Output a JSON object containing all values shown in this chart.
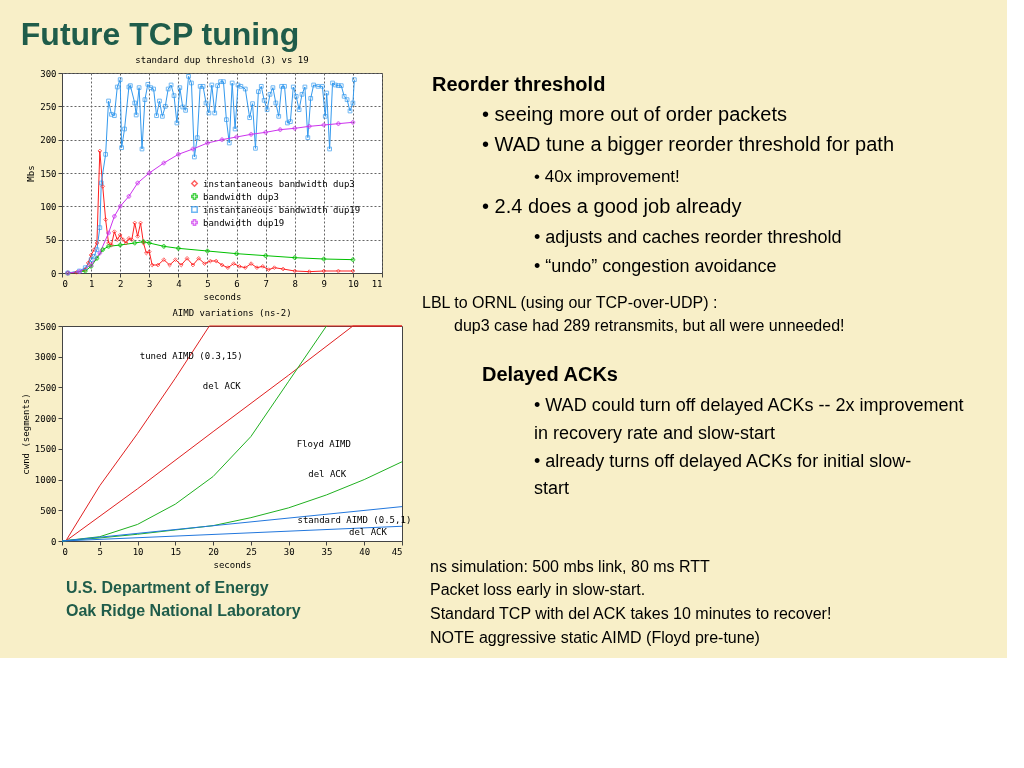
{
  "chart_data": [
    {
      "type": "line",
      "title": "standard dup threshold (3) vs 19",
      "xlabel": "seconds",
      "ylabel": "Mbs",
      "xlim": [
        0,
        11
      ],
      "xticks": [
        0,
        1,
        2,
        3,
        4,
        5,
        6,
        7,
        8,
        9,
        10,
        11
      ],
      "ylim": [
        0,
        300
      ],
      "yticks": [
        0,
        50,
        100,
        150,
        200,
        250,
        300
      ],
      "grid": true,
      "legend": "right",
      "series": [
        {
          "name": "instantaneous bandwidth dup3",
          "color": "#ff2020",
          "marker": "diamond",
          "x": [
            0.2,
            0.5,
            0.8,
            0.9,
            1.0,
            1.1,
            1.2,
            1.3,
            1.4,
            1.5,
            1.6,
            1.7,
            1.8,
            1.9,
            2.0,
            2.1,
            2.2,
            2.3,
            2.4,
            2.5,
            2.6,
            2.7,
            2.8,
            2.9,
            3.0,
            3.1,
            3.3,
            3.5,
            3.7,
            3.9,
            4.1,
            4.3,
            4.5,
            4.7,
            4.9,
            5.1,
            5.3,
            5.5,
            5.7,
            5.9,
            6.1,
            6.3,
            6.5,
            6.7,
            6.9,
            7.1,
            7.3,
            7.6,
            8.0,
            8.5,
            9.0,
            9.5,
            10.0
          ],
          "values": [
            0,
            1,
            5,
            15,
            27,
            35,
            45,
            183,
            130,
            80,
            45,
            42,
            62,
            50,
            57,
            50,
            45,
            52,
            50,
            75,
            55,
            75,
            45,
            30,
            32,
            12,
            12,
            20,
            12,
            20,
            12,
            22,
            12,
            22,
            14,
            18,
            18,
            12,
            8,
            14,
            10,
            8,
            14,
            8,
            10,
            5,
            8,
            6,
            3,
            2,
            3,
            3,
            3
          ]
        },
        {
          "name": "bandwidth dup3",
          "color": "#00c000",
          "marker": "cross",
          "x": [
            0.2,
            0.8,
            1.0,
            1.2,
            1.4,
            1.6,
            2.0,
            2.5,
            2.8,
            3.0,
            3.5,
            4,
            5,
            6,
            7,
            8,
            9,
            10
          ],
          "values": [
            0,
            3,
            10,
            22,
            35,
            40,
            42,
            45,
            47,
            45,
            40,
            37,
            33,
            29,
            26,
            23,
            21,
            20
          ]
        },
        {
          "name": "instantaneous bandwidth dup19",
          "color": "#3399ee",
          "marker": "square",
          "x": [
            0.2,
            0.6,
            0.8,
            1.0,
            1.1,
            1.2,
            1.3,
            1.35,
            1.5,
            1.6,
            1.7,
            1.8,
            1.9,
            2.0,
            2.05,
            2.15,
            2.3,
            2.35,
            2.5,
            2.55,
            2.65,
            2.75,
            2.85,
            2.95,
            3.05,
            3.15,
            3.25,
            3.35,
            3.45,
            3.55,
            3.65,
            3.75,
            3.85,
            3.95,
            4.05,
            4.15,
            4.25,
            4.35,
            4.45,
            4.55,
            4.65,
            4.75,
            4.85,
            4.95,
            5.05,
            5.15,
            5.25,
            5.35,
            5.45,
            5.55,
            5.65,
            5.75,
            5.85,
            5.95,
            6.05,
            6.15,
            6.3,
            6.45,
            6.55,
            6.65,
            6.75,
            6.85,
            6.95,
            7.05,
            7.15,
            7.25,
            7.35,
            7.45,
            7.55,
            7.65,
            7.75,
            7.85,
            7.95,
            8.05,
            8.15,
            8.25,
            8.35,
            8.45,
            8.55,
            8.65,
            8.8,
            8.95,
            9.05,
            9.1,
            9.2,
            9.3,
            9.4,
            9.5,
            9.6,
            9.7,
            9.8,
            9.9,
            10.0,
            10.05
          ],
          "values": [
            0,
            3,
            8,
            20,
            25,
            35,
            68,
            135,
            178,
            258,
            238,
            236,
            279,
            290,
            188,
            216,
            279,
            281,
            255,
            237,
            278,
            186,
            260,
            283,
            278,
            276,
            236,
            258,
            235,
            250,
            276,
            282,
            266,
            225,
            278,
            249,
            244,
            295,
            285,
            174,
            203,
            280,
            280,
            255,
            240,
            282,
            240,
            281,
            287,
            287,
            230,
            195,
            285,
            216,
            282,
            280,
            276,
            233,
            254,
            187,
            272,
            280,
            259,
            245,
            268,
            278,
            255,
            235,
            280,
            280,
            225,
            227,
            279,
            265,
            245,
            268,
            279,
            203,
            262,
            282,
            280,
            280,
            235,
            270,
            186,
            285,
            282,
            281,
            281,
            265,
            260,
            243,
            255,
            290
          ]
        },
        {
          "name": "bandwidth dup19",
          "color": "#cc33ee",
          "marker": "cross",
          "x": [
            0.2,
            0.6,
            1.0,
            1.3,
            1.6,
            1.8,
            2.0,
            2.3,
            2.6,
            3.0,
            3.5,
            4,
            4.5,
            5,
            5.5,
            6,
            6.5,
            7,
            7.5,
            8,
            8.5,
            9,
            9.5,
            10
          ],
          "values": [
            0,
            2,
            12,
            30,
            60,
            85,
            100,
            115,
            135,
            150,
            165,
            178,
            186,
            195,
            200,
            204,
            208,
            211,
            215,
            217,
            220,
            222,
            224,
            226
          ]
        }
      ]
    },
    {
      "type": "line",
      "title": "AIMD variations (ns-2)",
      "xlabel": "seconds",
      "ylabel": "cwnd (segments)",
      "xlim": [
        0,
        45
      ],
      "xticks": [
        0,
        5,
        10,
        15,
        20,
        25,
        30,
        35,
        40,
        45
      ],
      "ylim": [
        0,
        3500
      ],
      "yticks": [
        0,
        500,
        1000,
        1500,
        2000,
        2500,
        3000,
        3500
      ],
      "marker": "none",
      "series": [
        {
          "color": "#e02020",
          "x": [
            0.5,
            5,
            10,
            15,
            19.5,
            45
          ],
          "values": [
            0,
            900,
            1750,
            2650,
            3500,
            3500
          ]
        },
        {
          "color": "#e02020",
          "x": [
            0.5,
            10,
            20,
            30,
            38.5,
            45
          ],
          "values": [
            0,
            850,
            1780,
            2700,
            3500,
            3500
          ]
        },
        {
          "color": "#20b020",
          "x": [
            0,
            5,
            10,
            15,
            20,
            25,
            30,
            35
          ],
          "values": [
            0,
            70,
            270,
            600,
            1050,
            1700,
            2600,
            3500
          ]
        },
        {
          "color": "#20b020",
          "x": [
            0,
            5,
            10,
            15,
            20,
            25,
            30,
            35,
            40,
            45
          ],
          "values": [
            0,
            50,
            110,
            180,
            250,
            380,
            540,
            750,
            1000,
            1290
          ]
        },
        {
          "color": "#2277dd",
          "x": [
            0,
            45
          ],
          "values": [
            0,
            560
          ]
        },
        {
          "color": "#2277dd",
          "x": [
            0,
            45
          ],
          "values": [
            0,
            240
          ]
        }
      ],
      "annotations": [
        "tuned AIMD (0.3,15)",
        "del ACK",
        "Floyd AIMD",
        "del ACK",
        "standard AIMD (0.5,1)",
        "del ACK"
      ]
    },
    {
      "type": "other",
      "title": "Future TCP tuning",
      "annotations": [
        "Reorder threshold",
        "• seeing more out of order packets",
        "• WAD tune a bigger reorder threshold for path",
        "• 40x improvement!",
        "• 2.4 does a good job already",
        "• adjusts and caches reorder threshold",
        "• “undo” congestion avoidance",
        "LBL to ORNL (using our TCP-over-UDP) :",
        "dup3 case had 289 retransmits, but all were unneeded!",
        "Delayed ACKs",
        "• WAD could turn off delayed ACKs -- 2x improvement",
        "in recovery rate and slow-start",
        "• already turns off delayed ACKs for initial slow-",
        "start",
        "ns simulation: 500 mbs link, 80 ms RTT",
        "Packet  loss early in slow-start.",
        "Standard TCP with del ACK takes 10 minutes to recover!",
        "NOTE aggressive static AIMD (Floyd pre-tune)",
        "U.S. Department of Energy",
        "Oak Ridge National Laboratory"
      ]
    }
  ]
}
